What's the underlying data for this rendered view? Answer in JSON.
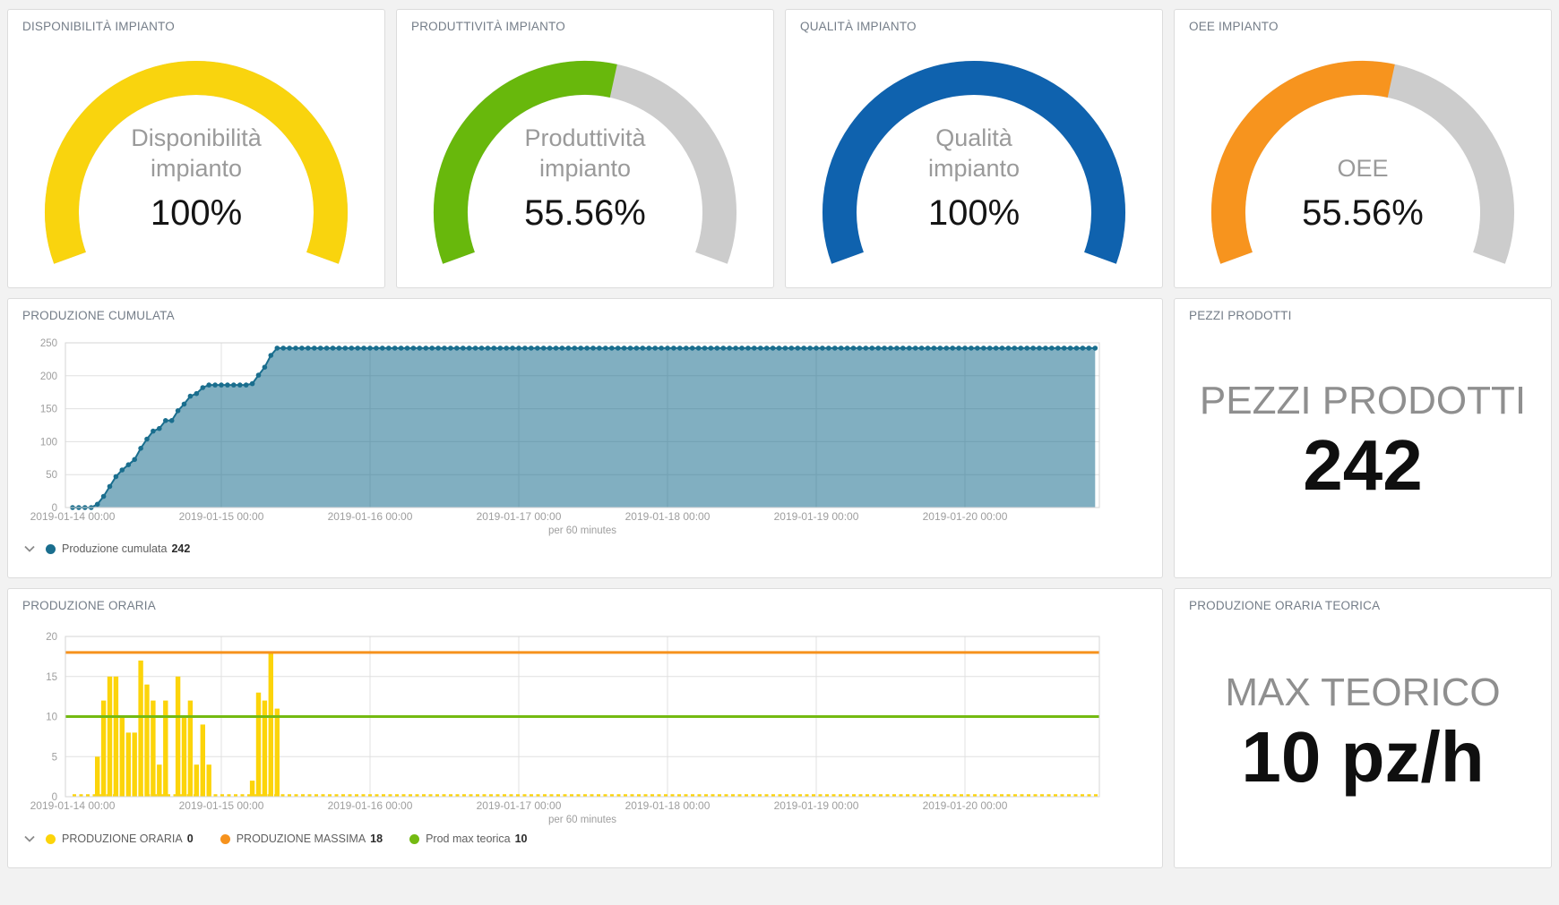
{
  "gauges": [
    {
      "title": "DISPONIBILITÀ IMPIANTO",
      "label_line1": "Disponibilità",
      "label_line2": "impianto",
      "value_text": "100%",
      "percent": 100,
      "color": "#f9d40e"
    },
    {
      "title": "PRODUTTIVITÀ IMPIANTO",
      "label_line1": "Produttività",
      "label_line2": "impianto",
      "value_text": "55.56%",
      "percent": 55.56,
      "color": "#68b80c"
    },
    {
      "title": "QUALITÀ IMPIANTO",
      "label_line1": "Qualità",
      "label_line2": "impianto",
      "value_text": "100%",
      "percent": 100,
      "color": "#0f62ae"
    },
    {
      "title": "OEE IMPIANTO",
      "label_line1": "OEE",
      "label_line2": "",
      "value_text": "55.56%",
      "percent": 55.56,
      "color": "#f7941e"
    }
  ],
  "gauge_track_color": "#cccccc",
  "cumulata_panel": {
    "title": "PRODUZIONE CUMULATA"
  },
  "oraria_panel": {
    "title": "PRODUZIONE ORARIA"
  },
  "pezzi_panel": {
    "title": "PEZZI PRODOTTI",
    "label": "PEZZI PRODOTTI",
    "value": "242"
  },
  "teorica_panel": {
    "title": "PRODUZIONE ORARIA TEORICA",
    "label": "MAX TEORICO",
    "value": "10 pz/h"
  },
  "chart_data": [
    {
      "type": "area",
      "title": "PRODUZIONE CUMULATA",
      "x_start": "2019-01-14 00:00",
      "x_interval_minutes": 60,
      "x_tick_labels": [
        "2019-01-14 00:00",
        "2019-01-15 00:00",
        "2019-01-16 00:00",
        "2019-01-17 00:00",
        "2019-01-18 00:00",
        "2019-01-19 00:00",
        "2019-01-20 00:00"
      ],
      "xlabel": "per 60 minutes",
      "ylim": [
        0,
        250
      ],
      "y_ticks": [
        0,
        50,
        100,
        150,
        200,
        250
      ],
      "grid": true,
      "legend_position": "bottom",
      "series": [
        {
          "name": "Produzione cumulata",
          "current": 242,
          "color": "#1a6e8e",
          "fill_opacity": 0.55,
          "values": [
            0,
            0,
            0,
            0,
            5,
            17,
            32,
            47,
            57,
            65,
            73,
            90,
            104,
            116,
            120,
            132,
            132,
            147,
            157,
            169,
            173,
            182,
            186,
            186,
            186,
            186,
            186,
            186,
            186,
            188,
            201,
            213,
            231,
            242,
            242,
            242,
            242,
            242,
            242,
            242,
            242,
            242,
            242,
            242,
            242,
            242,
            242,
            242,
            242,
            242,
            242,
            242,
            242,
            242,
            242,
            242,
            242,
            242,
            242,
            242,
            242,
            242,
            242,
            242,
            242,
            242,
            242,
            242,
            242,
            242,
            242,
            242,
            242,
            242,
            242,
            242,
            242,
            242,
            242,
            242,
            242,
            242,
            242,
            242,
            242,
            242,
            242,
            242,
            242,
            242,
            242,
            242,
            242,
            242,
            242,
            242,
            242,
            242,
            242,
            242,
            242,
            242,
            242,
            242,
            242,
            242,
            242,
            242,
            242,
            242,
            242,
            242,
            242,
            242,
            242,
            242,
            242,
            242,
            242,
            242,
            242,
            242,
            242,
            242,
            242,
            242,
            242,
            242,
            242,
            242,
            242,
            242,
            242,
            242,
            242,
            242,
            242,
            242,
            242,
            242,
            242,
            242,
            242,
            242,
            242,
            242,
            242,
            242,
            242,
            242,
            242,
            242,
            242,
            242,
            242,
            242,
            242,
            242,
            242,
            242,
            242,
            242,
            242,
            242,
            242,
            242
          ]
        }
      ]
    },
    {
      "type": "bar",
      "title": "PRODUZIONE ORARIA",
      "x_start": "2019-01-14 00:00",
      "x_interval_minutes": 60,
      "x_tick_labels": [
        "2019-01-14 00:00",
        "2019-01-15 00:00",
        "2019-01-16 00:00",
        "2019-01-17 00:00",
        "2019-01-18 00:00",
        "2019-01-19 00:00",
        "2019-01-20 00:00"
      ],
      "xlabel": "per 60 minutes",
      "ylim": [
        0,
        20
      ],
      "y_ticks": [
        0,
        5,
        10,
        15,
        20
      ],
      "grid": true,
      "legend_position": "bottom",
      "series": [
        {
          "name": "PRODUZIONE ORARIA",
          "kind": "bar",
          "current": 0,
          "color": "#fcd40a",
          "values": [
            0,
            0,
            0,
            0,
            5,
            12,
            15,
            15,
            10,
            8,
            8,
            17,
            14,
            12,
            4,
            12,
            0,
            15,
            10,
            12,
            4,
            9,
            4,
            0,
            0,
            0,
            0,
            0,
            0,
            2,
            13,
            12,
            18,
            11,
            0,
            0,
            0,
            0,
            0,
            0,
            0,
            0,
            0,
            0,
            0,
            0,
            0,
            0,
            0,
            0,
            0,
            0,
            0,
            0,
            0,
            0,
            0,
            0,
            0,
            0,
            0,
            0,
            0,
            0,
            0,
            0,
            0,
            0,
            0,
            0,
            0,
            0,
            0,
            0,
            0,
            0,
            0,
            0,
            0,
            0,
            0,
            0,
            0,
            0,
            0,
            0,
            0,
            0,
            0,
            0,
            0,
            0,
            0,
            0,
            0,
            0,
            0,
            0,
            0,
            0,
            0,
            0,
            0,
            0,
            0,
            0,
            0,
            0,
            0,
            0,
            0,
            0,
            0,
            0,
            0,
            0,
            0,
            0,
            0,
            0,
            0,
            0,
            0,
            0,
            0,
            0,
            0,
            0,
            0,
            0,
            0,
            0,
            0,
            0,
            0,
            0,
            0,
            0,
            0,
            0,
            0,
            0,
            0,
            0,
            0,
            0,
            0,
            0,
            0,
            0,
            0,
            0,
            0,
            0,
            0,
            0,
            0,
            0,
            0,
            0,
            0,
            0,
            0,
            0,
            0,
            0
          ]
        },
        {
          "name": "PRODUZIONE MASSIMA",
          "kind": "hline",
          "current": 18,
          "value": 18,
          "color": "#f6921d"
        },
        {
          "name": "Prod max teorica",
          "kind": "hline",
          "current": 10,
          "value": 10,
          "color": "#74ba12"
        }
      ]
    }
  ]
}
